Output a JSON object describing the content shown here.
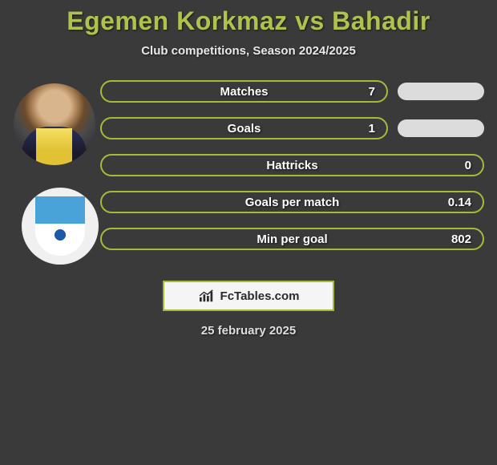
{
  "title": "Egemen Korkmaz vs Bahadir",
  "subtitle": "Club competitions, Season 2024/2025",
  "date": "25 february 2025",
  "brand": "FcTables.com",
  "colors": {
    "accent": "#aab83a",
    "pill_bg": "#dcdcdc",
    "text_light": "#ffffff"
  },
  "stats": [
    {
      "label": "Matches",
      "value": "7",
      "show_right_pill": true
    },
    {
      "label": "Goals",
      "value": "1",
      "show_right_pill": true
    },
    {
      "label": "Hattricks",
      "value": "0",
      "show_right_pill": false
    },
    {
      "label": "Goals per match",
      "value": "0.14",
      "show_right_pill": false
    },
    {
      "label": "Min per goal",
      "value": "802",
      "show_right_pill": false
    }
  ]
}
